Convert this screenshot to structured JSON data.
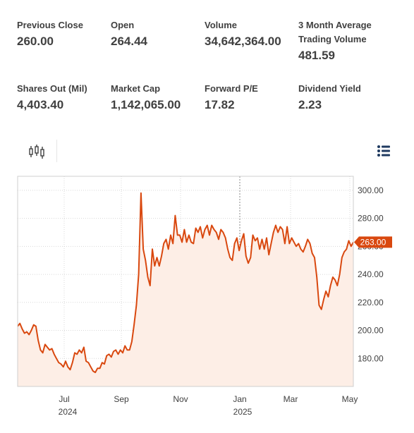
{
  "stats": [
    {
      "label": "Previous Close",
      "value": "260.00"
    },
    {
      "label": "Open",
      "value": "264.44"
    },
    {
      "label": "Volume",
      "value": "34,642,364.00"
    },
    {
      "label": "3 Month Average Trading Volume",
      "value": "481.59"
    },
    {
      "label": "Shares Out (Mil)",
      "value": "4,403.40"
    },
    {
      "label": "Market Cap",
      "value": "1,142,065.00"
    },
    {
      "label": "Forward P/E",
      "value": "17.82"
    },
    {
      "label": "Dividend Yield",
      "value": "2.23"
    }
  ],
  "toolbar": {
    "chart_type_icon": "candlestick-icon",
    "menu_icon": "list-menu-icon"
  },
  "colors": {
    "line": "#d9480f",
    "area": "#fdeee6",
    "badge": "#d9480f",
    "menu_icon": "#1f3a60"
  },
  "chart_data": {
    "type": "area",
    "ylim": [
      160,
      310
    ],
    "yticks": [
      "300.00",
      "280.00",
      "260.00",
      "240.00",
      "220.00",
      "200.00",
      "180.00"
    ],
    "ytick_values": [
      300,
      280,
      260,
      240,
      220,
      200,
      180
    ],
    "month_labels": [
      "Jul",
      "Sep",
      "Nov",
      "Jan",
      "Mar",
      "May"
    ],
    "year_labels": [
      "2024",
      "2025"
    ],
    "last_value_label": "263.00",
    "last_value": 263,
    "values": [
      203,
      205,
      201,
      198,
      199,
      197,
      200,
      204,
      203,
      193,
      186,
      184,
      190,
      188,
      186,
      187,
      183,
      180,
      177,
      176,
      174,
      178,
      174,
      172,
      177,
      184,
      183,
      186,
      184,
      188,
      178,
      177,
      174,
      171,
      170,
      173,
      173,
      177,
      176,
      182,
      183,
      181,
      185,
      186,
      183,
      186,
      184,
      189,
      186,
      186,
      192,
      204,
      218,
      240,
      298,
      258,
      250,
      238,
      232,
      258,
      246,
      252,
      246,
      253,
      262,
      265,
      258,
      268,
      262,
      282,
      268,
      268,
      263,
      272,
      263,
      268,
      263,
      262,
      273,
      270,
      274,
      266,
      272,
      275,
      268,
      275,
      272,
      270,
      265,
      272,
      270,
      266,
      258,
      252,
      250,
      262,
      266,
      257,
      264,
      269,
      253,
      248,
      252,
      268,
      264,
      266,
      258,
      265,
      258,
      266,
      254,
      262,
      270,
      275,
      270,
      274,
      272,
      262,
      274,
      262,
      266,
      263,
      260,
      262,
      258,
      256,
      260,
      265,
      262,
      255,
      252,
      238,
      218,
      215,
      222,
      228,
      224,
      232,
      238,
      236,
      232,
      240,
      252,
      256,
      258,
      264,
      260,
      263
    ]
  }
}
